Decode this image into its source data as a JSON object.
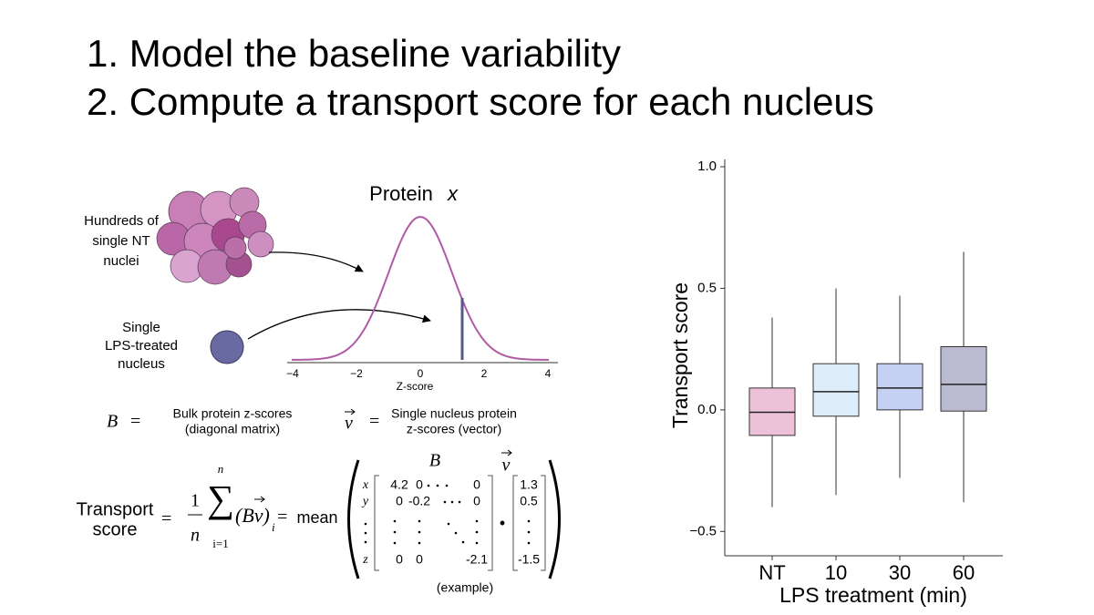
{
  "title_lines": [
    "1. Model the baseline variability",
    "2. Compute a transport score for each nucleus"
  ],
  "diagram": {
    "population_label": [
      "Hundreds of",
      "single NT",
      "nuclei"
    ],
    "single_label": [
      "Single",
      "LPS-treated",
      "nucleus"
    ],
    "plot_title": "Protein",
    "plot_title_var": "x",
    "z_ticks": [
      "−4",
      "−2",
      "0",
      "2",
      "4"
    ],
    "z_label": "Z-score",
    "B_symbol": "B",
    "equals": "=",
    "B_desc": [
      "Bulk protein z-scores",
      "(diagonal matrix)"
    ],
    "v_symbol": "v",
    "v_desc": [
      "Single nucleus protein",
      "z-scores (vector)"
    ],
    "score_label": [
      "Transport",
      "score"
    ],
    "numerator": "1",
    "denominator": "n",
    "sum_symbol": "∑",
    "sum_upper": "n",
    "sum_lower": "i=1",
    "product": "(Bv)",
    "product_index": "i",
    "mean": "mean",
    "matrix_rows": [
      "x",
      "y",
      "z"
    ],
    "matrix": [
      [
        "4.2",
        "0",
        "0"
      ],
      [
        "0",
        "-0.2",
        "0"
      ],
      [
        "0",
        "0",
        "-2.1"
      ]
    ],
    "vector": [
      "1.3",
      "0.5",
      "-1.5"
    ],
    "dot": "•",
    "example_note": "(example)"
  },
  "chart_data": {
    "type": "box",
    "categories": [
      "NT",
      "10",
      "30",
      "60"
    ],
    "x_label": "LPS treatment (min)",
    "y_label": "Transport score",
    "colors": [
      "#c2347e",
      "#8fc3ec",
      "#3f63d8",
      "#1b1f66"
    ],
    "boxes": [
      {
        "whislo": -0.4,
        "q1": -0.105,
        "median": -0.01,
        "q3": 0.09,
        "whishi": 0.38
      },
      {
        "whislo": -0.35,
        "q1": -0.026,
        "median": 0.075,
        "q3": 0.19,
        "whishi": 0.5
      },
      {
        "whislo": -0.28,
        "q1": 0.0,
        "median": 0.09,
        "q3": 0.19,
        "whishi": 0.47
      },
      {
        "whislo": -0.38,
        "q1": -0.005,
        "median": 0.105,
        "q3": 0.26,
        "whishi": 0.65
      }
    ],
    "ylim": [
      -0.6,
      1.03
    ],
    "yticks": [
      {
        "value": -0.5,
        "label": "−0.5"
      },
      {
        "value": 0,
        "label": "0.0"
      },
      {
        "value": 0.5,
        "label": "0.5"
      },
      {
        "value": 1,
        "label": "1.0"
      }
    ]
  }
}
